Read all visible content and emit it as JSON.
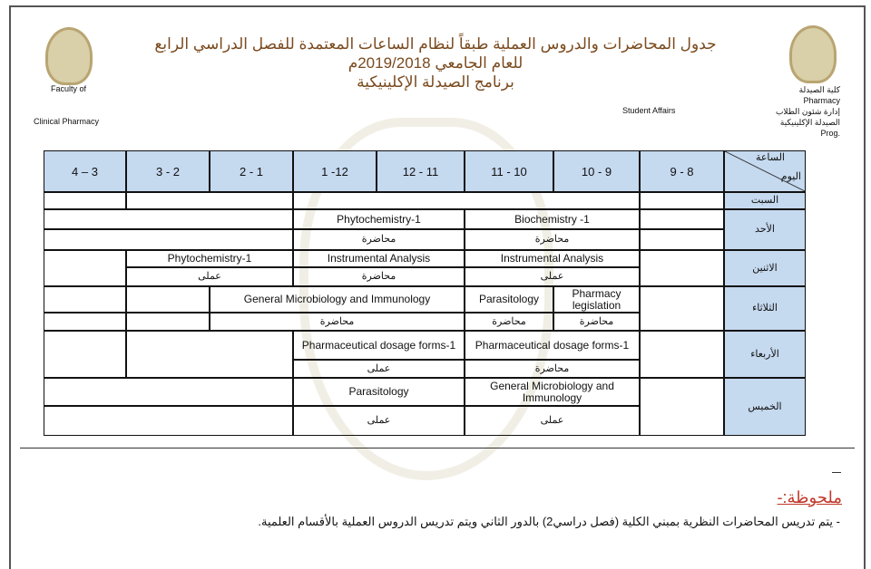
{
  "header": {
    "title_line1": "جدول المحاضرات والدروس العملية طبقاً لنظام الساعات المعتمدة للفصل الدراسي الرابع",
    "title_line2": "للعام الجامعي 2019/2018م",
    "title_line3": "برنامج الصيدلة الإكلينيكية",
    "left_line1": "Faculty of",
    "left_line2": "Clinical Pharmacy",
    "center_right": "Student Affairs",
    "right_lines": [
      "كلية الصيدلة",
      "Pharmacy",
      "إدارة شئون الطلاب",
      "الصيدلة الإكلينيكية",
      "Prog."
    ]
  },
  "table": {
    "corner_top": "الساعة",
    "corner_bottom": "اليوم",
    "hours": [
      "4 – 3",
      "3 - 2",
      "2 - 1",
      "1 -12",
      "12 - 11",
      "11 - 10",
      "10 - 9",
      "9 - 8"
    ],
    "days": [
      "السبت",
      "الأحد",
      "الاثنين",
      "الثلاثاء",
      "الأربعاء",
      "الخميس"
    ],
    "sunday": [
      {
        "course": "Phytochemistry-1",
        "type": "محاضرة"
      },
      {
        "course": "Biochemistry -1",
        "type": "محاضرة"
      }
    ],
    "monday": [
      {
        "course": "Phytochemistry-1",
        "type": "عملى"
      },
      {
        "course": "Instrumental Analysis",
        "type": "محاضرة"
      },
      {
        "course": "Instrumental Analysis",
        "type": "عملى"
      }
    ],
    "tuesday": [
      {
        "course": "General Microbiology and Immunology",
        "type": "محاضرة"
      },
      {
        "course": "Parasitology",
        "type": "محاضرة"
      },
      {
        "course": "Pharmacy legislation",
        "type": "محاضرة"
      }
    ],
    "wednesday": [
      {
        "course": "Pharmaceutical dosage forms-1",
        "type": "عملى"
      },
      {
        "course": "Pharmaceutical dosage forms-1",
        "type": "محاضرة"
      }
    ],
    "thursday": [
      {
        "course": "Parasitology",
        "type": "عملى"
      },
      {
        "course": "General Microbiology and Immunology",
        "type": "عملى"
      }
    ]
  },
  "notes": {
    "heading": "ملحوظة:-",
    "items": [
      "يتم تدريس المحاضرات النظرية بمبني الكلية (فصل دراسي2) بالدور الثاني ويتم تدريس الدروس العملية بالأقسام العلمية."
    ]
  }
}
